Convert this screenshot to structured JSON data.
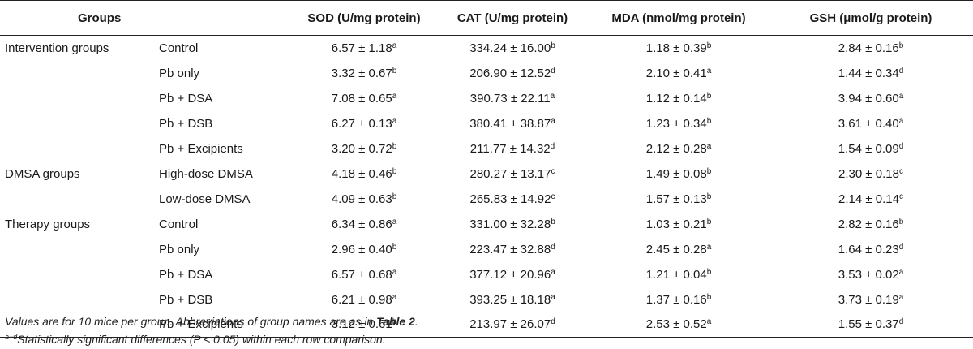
{
  "header": {
    "groups": "Groups",
    "sod": "SOD (U/mg protein)",
    "cat": "CAT (U/mg protein)",
    "mda": "MDA (nmol/mg protein)",
    "gsh": "GSH (μmol/g protein)"
  },
  "rows": [
    {
      "group": "Intervention groups",
      "sub": "Control",
      "sod": {
        "v": "6.57 ± 1.18",
        "s": "a"
      },
      "cat": {
        "v": "334.24 ± 16.00",
        "s": "b"
      },
      "mda": {
        "v": "1.18 ± 0.39",
        "s": "b"
      },
      "gsh": {
        "v": "2.84 ± 0.16",
        "s": "b"
      }
    },
    {
      "group": "",
      "sub": "Pb only",
      "sod": {
        "v": "3.32 ± 0.67",
        "s": "b"
      },
      "cat": {
        "v": "206.90 ± 12.52",
        "s": "d"
      },
      "mda": {
        "v": "2.10 ± 0.41",
        "s": "a"
      },
      "gsh": {
        "v": "1.44 ± 0.34",
        "s": "d"
      }
    },
    {
      "group": "",
      "sub": "Pb + DSA",
      "sod": {
        "v": "7.08 ± 0.65",
        "s": "a"
      },
      "cat": {
        "v": "390.73 ± 22.11",
        "s": "a"
      },
      "mda": {
        "v": "1.12 ± 0.14",
        "s": "b"
      },
      "gsh": {
        "v": "3.94 ± 0.60",
        "s": "a"
      }
    },
    {
      "group": "",
      "sub": "Pb + DSB",
      "sod": {
        "v": "6.27 ± 0.13",
        "s": "a"
      },
      "cat": {
        "v": "380.41 ± 38.87",
        "s": "a"
      },
      "mda": {
        "v": "1.23 ± 0.34",
        "s": "b"
      },
      "gsh": {
        "v": "3.61 ± 0.40",
        "s": "a"
      }
    },
    {
      "group": "",
      "sub": "Pb + Excipients",
      "sod": {
        "v": "3.20 ± 0.72",
        "s": "b"
      },
      "cat": {
        "v": "211.77 ± 14.32",
        "s": "d"
      },
      "mda": {
        "v": "2.12 ± 0.28",
        "s": "a"
      },
      "gsh": {
        "v": "1.54 ± 0.09",
        "s": "d"
      }
    },
    {
      "group": "DMSA groups",
      "sub": "High-dose DMSA",
      "sod": {
        "v": "4.18 ± 0.46",
        "s": "b"
      },
      "cat": {
        "v": "280.27 ± 13.17",
        "s": "c"
      },
      "mda": {
        "v": "1.49 ± 0.08",
        "s": "b"
      },
      "gsh": {
        "v": "2.30 ± 0.18",
        "s": "c"
      }
    },
    {
      "group": "",
      "sub": "Low-dose DMSA",
      "sod": {
        "v": "4.09 ± 0.63",
        "s": "b"
      },
      "cat": {
        "v": "265.83 ± 14.92",
        "s": "c"
      },
      "mda": {
        "v": "1.57 ± 0.13",
        "s": "b"
      },
      "gsh": {
        "v": "2.14 ± 0.14",
        "s": "c"
      }
    },
    {
      "group": "Therapy groups",
      "sub": "Control",
      "sod": {
        "v": "6.34 ± 0.86",
        "s": "a"
      },
      "cat": {
        "v": "331.00 ± 32.28",
        "s": "b"
      },
      "mda": {
        "v": "1.03 ± 0.21",
        "s": "b"
      },
      "gsh": {
        "v": "2.82 ± 0.16",
        "s": "b"
      }
    },
    {
      "group": "",
      "sub": "Pb only",
      "sod": {
        "v": "2.96 ± 0.40",
        "s": "b"
      },
      "cat": {
        "v": "223.47 ± 32.88",
        "s": "d"
      },
      "mda": {
        "v": "2.45 ± 0.28",
        "s": "a"
      },
      "gsh": {
        "v": "1.64 ± 0.23",
        "s": "d"
      }
    },
    {
      "group": "",
      "sub": "Pb + DSA",
      "sod": {
        "v": "6.57 ± 0.68",
        "s": "a"
      },
      "cat": {
        "v": "377.12 ± 20.96",
        "s": "a"
      },
      "mda": {
        "v": "1.21 ± 0.04",
        "s": "b"
      },
      "gsh": {
        "v": "3.53 ± 0.02",
        "s": "a"
      }
    },
    {
      "group": "",
      "sub": "Pb + DSB",
      "sod": {
        "v": "6.21 ± 0.98",
        "s": "a"
      },
      "cat": {
        "v": "393.25 ± 18.18",
        "s": "a"
      },
      "mda": {
        "v": "1.37 ± 0.16",
        "s": "b"
      },
      "gsh": {
        "v": "3.73 ± 0.19",
        "s": "a"
      }
    },
    {
      "group": "",
      "sub": "Pb + Excipients",
      "sod": {
        "v": "3.12 ± 0.61",
        "s": "b"
      },
      "cat": {
        "v": "213.97 ± 26.07",
        "s": "d"
      },
      "mda": {
        "v": "2.53 ± 0.52",
        "s": "a"
      },
      "gsh": {
        "v": "1.55 ± 0.37",
        "s": "d"
      }
    }
  ],
  "notes": {
    "line1_prefix": "Values are for 10 mice per group. Abbreviations of group names are as in ",
    "line1_ref": "Table 2",
    "line1_suffix": ".",
    "line2_sup": "a−d",
    "line2_text": "Statistically significant differences (P < 0.05) within each row comparison."
  }
}
